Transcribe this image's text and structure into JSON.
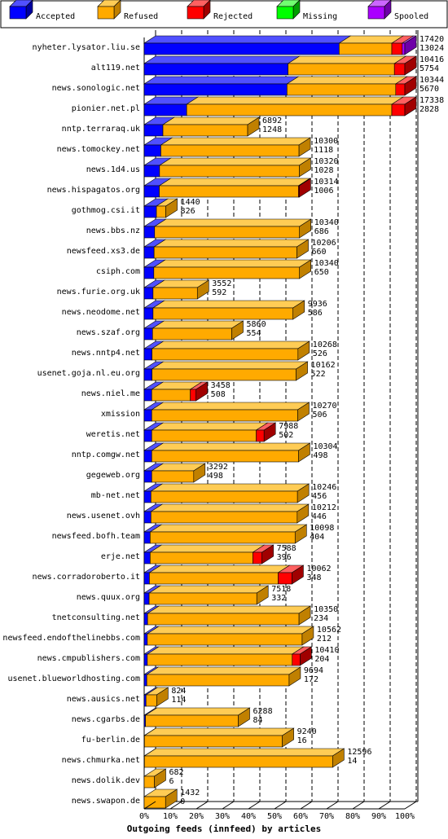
{
  "chart_data": {
    "type": "bar",
    "orientation": "horizontal",
    "stacked": true,
    "title": "Outgoing feeds (innfeed) by articles",
    "xlim": [
      0,
      100
    ],
    "x_ticks": [
      "0%",
      "10%",
      "20%",
      "30%",
      "40%",
      "50%",
      "60%",
      "70%",
      "80%",
      "90%",
      "100%"
    ],
    "grid": true,
    "legend_position": "top",
    "legend": [
      {
        "name": "Accepted",
        "color": "#0000ff",
        "side": "#0000a0",
        "top": "#5050ff"
      },
      {
        "name": "Refused",
        "color": "#ffaa00",
        "side": "#c08000",
        "top": "#ffcc55"
      },
      {
        "name": "Rejected",
        "color": "#ff0000",
        "side": "#a00000",
        "top": "#ff6060"
      },
      {
        "name": "Missing",
        "color": "#00ff00",
        "side": "#00a000",
        "top": "#70ff70"
      },
      {
        "name": "Spooled",
        "color": "#aa00ff",
        "side": "#6e00a8",
        "top": "#cc66ff"
      }
    ],
    "categories": [
      {
        "name": "nyheter.lysator.liu.se",
        "offered": "17420",
        "accepted": "13024",
        "pct": {
          "accepted": 74.8,
          "refused": 20.2,
          "rejected": 4.0,
          "missing": 0,
          "spooled": 1.0
        }
      },
      {
        "name": "alt119.net",
        "offered": "10416",
        "accepted": "5754",
        "pct": {
          "accepted": 55.2,
          "refused": 40.8,
          "rejected": 4.0,
          "missing": 0,
          "spooled": 0
        }
      },
      {
        "name": "news.sonologic.net",
        "offered": "10344",
        "accepted": "5670",
        "pct": {
          "accepted": 54.8,
          "refused": 41.7,
          "rejected": 3.5,
          "missing": 0,
          "spooled": 0
        }
      },
      {
        "name": "pionier.net.pl",
        "offered": "17338",
        "accepted": "2828",
        "pct": {
          "accepted": 16.3,
          "refused": 78.7,
          "rejected": 5.0,
          "missing": 0,
          "spooled": 0
        }
      },
      {
        "name": "nntp.terraraq.uk",
        "offered": "6892",
        "accepted": "1248",
        "pct": {
          "accepted": 7.2,
          "refused": 32.5,
          "rejected": 0,
          "missing": 0,
          "spooled": 0
        }
      },
      {
        "name": "news.tomockey.net",
        "offered": "10300",
        "accepted": "1118",
        "pct": {
          "accepted": 6.4,
          "refused": 53.0,
          "rejected": 0,
          "missing": 0,
          "spooled": 0
        }
      },
      {
        "name": "news.1d4.us",
        "offered": "10320",
        "accepted": "1028",
        "pct": {
          "accepted": 5.9,
          "refused": 53.6,
          "rejected": 0,
          "missing": 0,
          "spooled": 0
        }
      },
      {
        "name": "news.hispagatos.org",
        "offered": "10314",
        "accepted": "1006",
        "pct": {
          "accepted": 5.8,
          "refused": 53.4,
          "rejected": 0.3,
          "missing": 0,
          "spooled": 0
        }
      },
      {
        "name": "gothmog.csi.it",
        "offered": "1440",
        "accepted": "826",
        "pct": {
          "accepted": 4.7,
          "refused": 3.6,
          "rejected": 0,
          "missing": 0,
          "spooled": 0
        }
      },
      {
        "name": "news.bbs.nz",
        "offered": "10340",
        "accepted": "686",
        "pct": {
          "accepted": 4.0,
          "refused": 55.6,
          "rejected": 0,
          "missing": 0,
          "spooled": 0
        }
      },
      {
        "name": "newsfeed.xs3.de",
        "offered": "10206",
        "accepted": "660",
        "pct": {
          "accepted": 3.8,
          "refused": 54.8,
          "rejected": 0,
          "missing": 0,
          "spooled": 0
        }
      },
      {
        "name": "csiph.com",
        "offered": "10340",
        "accepted": "650",
        "pct": {
          "accepted": 3.7,
          "refused": 55.9,
          "rejected": 0,
          "missing": 0,
          "spooled": 0
        }
      },
      {
        "name": "news.furie.org.uk",
        "offered": "3552",
        "accepted": "592",
        "pct": {
          "accepted": 3.4,
          "refused": 17.0,
          "rejected": 0,
          "missing": 0,
          "spooled": 0
        }
      },
      {
        "name": "news.neodome.net",
        "offered": "9936",
        "accepted": "586",
        "pct": {
          "accepted": 3.4,
          "refused": 53.7,
          "rejected": 0,
          "missing": 0,
          "spooled": 0
        }
      },
      {
        "name": "news.szaf.org",
        "offered": "5860",
        "accepted": "554",
        "pct": {
          "accepted": 3.2,
          "refused": 30.4,
          "rejected": 0,
          "missing": 0,
          "spooled": 0
        }
      },
      {
        "name": "news.nntp4.net",
        "offered": "10268",
        "accepted": "526",
        "pct": {
          "accepted": 3.0,
          "refused": 56.0,
          "rejected": 0,
          "missing": 0,
          "spooled": 0
        }
      },
      {
        "name": "usenet.goja.nl.eu.org",
        "offered": "10162",
        "accepted": "522",
        "pct": {
          "accepted": 3.0,
          "refused": 55.3,
          "rejected": 0,
          "missing": 0,
          "spooled": 0
        }
      },
      {
        "name": "news.niel.me",
        "offered": "3458",
        "accepted": "508",
        "pct": {
          "accepted": 2.9,
          "refused": 14.8,
          "rejected": 2.2,
          "missing": 0,
          "spooled": 0
        }
      },
      {
        "name": "xmission",
        "offered": "10270",
        "accepted": "506",
        "pct": {
          "accepted": 2.9,
          "refused": 56.0,
          "rejected": 0,
          "missing": 0,
          "spooled": 0
        }
      },
      {
        "name": "weretis.net",
        "offered": "7988",
        "accepted": "502",
        "pct": {
          "accepted": 2.9,
          "refused": 40.1,
          "rejected": 3.0,
          "missing": 0,
          "spooled": 0
        }
      },
      {
        "name": "nntp.comgw.net",
        "offered": "10304",
        "accepted": "498",
        "pct": {
          "accepted": 2.9,
          "refused": 56.3,
          "rejected": 0,
          "missing": 0,
          "spooled": 0
        }
      },
      {
        "name": "gegeweb.org",
        "offered": "3292",
        "accepted": "498",
        "pct": {
          "accepted": 2.9,
          "refused": 16.1,
          "rejected": 0,
          "missing": 0,
          "spooled": 0
        }
      },
      {
        "name": "mb-net.net",
        "offered": "10246",
        "accepted": "456",
        "pct": {
          "accepted": 2.6,
          "refused": 56.2,
          "rejected": 0,
          "missing": 0,
          "spooled": 0
        }
      },
      {
        "name": "news.usenet.ovh",
        "offered": "10212",
        "accepted": "446",
        "pct": {
          "accepted": 2.6,
          "refused": 56.1,
          "rejected": 0,
          "missing": 0,
          "spooled": 0
        }
      },
      {
        "name": "newsfeed.bofh.team",
        "offered": "10098",
        "accepted": "404",
        "pct": {
          "accepted": 2.3,
          "refused": 55.6,
          "rejected": 0,
          "missing": 0,
          "spooled": 0
        }
      },
      {
        "name": "erje.net",
        "offered": "7588",
        "accepted": "396",
        "pct": {
          "accepted": 2.3,
          "refused": 39.4,
          "rejected": 3.5,
          "missing": 0,
          "spooled": 0
        }
      },
      {
        "name": "news.corradoroberto.it",
        "offered": "10062",
        "accepted": "348",
        "pct": {
          "accepted": 2.0,
          "refused": 49.4,
          "rejected": 5.3,
          "missing": 0,
          "spooled": 0
        }
      },
      {
        "name": "news.quux.org",
        "offered": "7518",
        "accepted": "332",
        "pct": {
          "accepted": 1.9,
          "refused": 41.3,
          "rejected": 0,
          "missing": 0,
          "spooled": 0
        }
      },
      {
        "name": "tnetconsulting.net",
        "offered": "10350",
        "accepted": "234",
        "pct": {
          "accepted": 1.3,
          "refused": 58.1,
          "rejected": 0,
          "missing": 0,
          "spooled": 0
        }
      },
      {
        "name": "newsfeed.endofthelinebbs.com",
        "offered": "10562",
        "accepted": "212",
        "pct": {
          "accepted": 1.2,
          "refused": 59.4,
          "rejected": 0,
          "missing": 0,
          "spooled": 0
        }
      },
      {
        "name": "news.cmpublishers.com",
        "offered": "10410",
        "accepted": "204",
        "pct": {
          "accepted": 1.2,
          "refused": 55.6,
          "rejected": 3.0,
          "missing": 0,
          "spooled": 0
        }
      },
      {
        "name": "usenet.blueworldhosting.com",
        "offered": "9694",
        "accepted": "172",
        "pct": {
          "accepted": 1.0,
          "refused": 54.6,
          "rejected": 0,
          "missing": 0,
          "spooled": 0
        }
      },
      {
        "name": "news.ausics.net",
        "offered": "824",
        "accepted": "114",
        "pct": {
          "accepted": 0.7,
          "refused": 4.1,
          "rejected": 0,
          "missing": 0,
          "spooled": 0
        }
      },
      {
        "name": "news.cgarbs.de",
        "offered": "6288",
        "accepted": "84",
        "pct": {
          "accepted": 0.5,
          "refused": 35.6,
          "rejected": 0,
          "missing": 0,
          "spooled": 0
        }
      },
      {
        "name": "fu-berlin.de",
        "offered": "9240",
        "accepted": "16",
        "pct": {
          "accepted": 0.1,
          "refused": 52.9,
          "rejected": 0,
          "missing": 0,
          "spooled": 0
        }
      },
      {
        "name": "news.chmurka.net",
        "offered": "12596",
        "accepted": "14",
        "pct": {
          "accepted": 0.1,
          "refused": 72.2,
          "rejected": 0,
          "missing": 0,
          "spooled": 0
        }
      },
      {
        "name": "news.dolik.dev",
        "offered": "682",
        "accepted": "6",
        "pct": {
          "accepted": 0.0,
          "refused": 3.9,
          "rejected": 0,
          "missing": 0,
          "spooled": 0
        }
      },
      {
        "name": "news.swapon.de",
        "offered": "1432",
        "accepted": "0",
        "pct": {
          "accepted": 0.0,
          "refused": 8.2,
          "rejected": 0,
          "missing": 0,
          "spooled": 0
        }
      }
    ]
  }
}
